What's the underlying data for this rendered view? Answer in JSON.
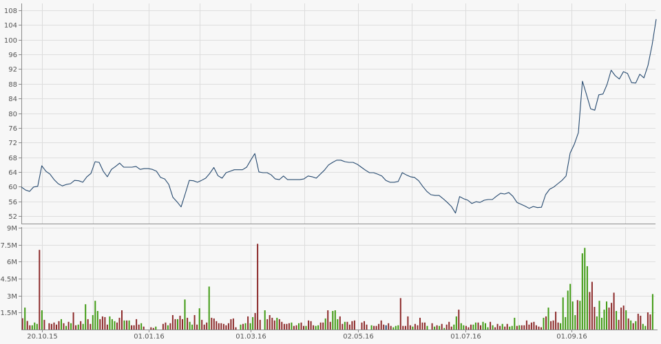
{
  "chart_data": [
    {
      "type": "line",
      "panel": "price",
      "ylim": [
        50,
        109
      ],
      "yticks": [
        52,
        56,
        60,
        64,
        68,
        72,
        76,
        80,
        84,
        88,
        92,
        96,
        100,
        104,
        108
      ],
      "grid": true,
      "color": "#24486e",
      "values": [
        59.9,
        59.1,
        58.7,
        59.9,
        60.1,
        65.7,
        64.2,
        63.4,
        61.9,
        60.8,
        60.2,
        60.6,
        60.8,
        61.7,
        61.6,
        61.2,
        62.7,
        63.6,
        66.8,
        66.6,
        64.2,
        62.7,
        64.7,
        65.5,
        66.4,
        65.3,
        65.3,
        65.3,
        65.5,
        64.7,
        64.9,
        64.9,
        64.7,
        64.2,
        62.5,
        62.1,
        60.6,
        57.1,
        55.9,
        54.5,
        58.0,
        61.7,
        61.6,
        61.2,
        61.7,
        62.3,
        63.6,
        65.2,
        63.0,
        62.3,
        63.8,
        64.2,
        64.6,
        64.6,
        64.6,
        65.3,
        67.2,
        69.0,
        64.0,
        63.8,
        63.8,
        63.2,
        62.1,
        61.9,
        62.9,
        61.9,
        61.9,
        61.9,
        61.9,
        62.1,
        62.9,
        62.7,
        62.3,
        63.4,
        64.5,
        65.9,
        66.6,
        67.2,
        67.2,
        66.8,
        66.6,
        66.6,
        66.1,
        65.3,
        64.5,
        63.8,
        63.8,
        63.4,
        62.9,
        61.7,
        61.2,
        61.2,
        61.4,
        63.8,
        63.2,
        62.7,
        62.5,
        61.6,
        60.1,
        58.7,
        57.8,
        57.6,
        57.6,
        56.7,
        55.7,
        54.6,
        52.8,
        57.3,
        56.7,
        56.3,
        55.4,
        55.9,
        55.7,
        56.3,
        56.5,
        56.5,
        57.4,
        58.2,
        58.0,
        58.4,
        57.4,
        55.7,
        55.2,
        54.7,
        54.1,
        54.6,
        54.3,
        54.4,
        57.8,
        59.3,
        59.9,
        60.8,
        61.7,
        62.9,
        69.2,
        71.5,
        74.7,
        88.7,
        85.0,
        81.2,
        80.8,
        85.0,
        85.2,
        87.8,
        91.7,
        90.2,
        89.3,
        91.3,
        90.8,
        88.3,
        88.2,
        90.6,
        89.6,
        93.0,
        98.6,
        105.6
      ]
    },
    {
      "type": "bar",
      "panel": "volume",
      "ylim": [
        0,
        9000000
      ],
      "yticks": [
        {
          "value": 1500000,
          "label": "1.5M"
        },
        {
          "value": 3000000,
          "label": "3M"
        },
        {
          "value": 4500000,
          "label": "4.5M"
        },
        {
          "value": 6000000,
          "label": "6M"
        },
        {
          "value": 7500000,
          "label": "7.5M"
        },
        {
          "value": 9000000,
          "label": "9M"
        }
      ],
      "grid": true,
      "colors": {
        "u": "#3f9a12",
        "d": "#8c2a2a",
        "n": "#24486e"
      },
      "values_millions": [
        1.0,
        1.94,
        0.76,
        0.38,
        0.38,
        0.62,
        0.5,
        7.04,
        1.7,
        0.86,
        null,
        0.56,
        0.5,
        0.62,
        0.44,
        0.74,
        0.92,
        0.56,
        0.32,
        0.68,
        0.56,
        1.52,
        0.38,
        0.44,
        0.74,
        0.5,
        2.24,
        0.92,
        0.5,
        1.28,
        2.54,
        1.64,
        0.92,
        1.16,
        1.1,
        0.44,
        1.16,
        0.92,
        0.74,
        0.62,
        1.04,
        1.7,
        0.8,
        0.8,
        0.8,
        0.38,
        0.38,
        0.92,
        0.44,
        0.56,
        0.26,
        null,
        null,
        0.2,
        0.14,
        0.26,
        null,
        null,
        0.5,
        0.62,
        0.38,
        0.56,
        1.28,
        0.92,
        0.92,
        1.22,
        0.92,
        2.66,
        1.04,
        0.68,
        0.44,
        1.28,
        0.44,
        1.88,
        0.86,
        0.44,
        0.62,
        3.8,
        1.04,
        0.98,
        0.74,
        0.56,
        0.56,
        0.5,
        0.38,
        0.56,
        0.92,
        0.98,
        0.2,
        null,
        0.44,
        0.5,
        0.56,
        1.16,
        0.56,
        1.1,
        1.46,
        7.58,
        0.86,
        null,
        1.7,
        0.92,
        1.28,
        1.04,
        0.8,
        1.04,
        0.92,
        0.68,
        0.5,
        0.5,
        0.56,
        0.62,
        0.32,
        0.38,
        0.56,
        0.62,
        0.32,
        0.32,
        0.8,
        0.74,
        0.38,
        0.32,
        0.38,
        0.62,
        0.62,
        0.98,
        1.7,
        0.68,
        1.64,
        1.7,
        0.92,
        1.16,
        0.5,
        0.68,
        0.68,
        0.44,
        0.74,
        0.8,
        null,
        null,
        0.62,
        0.74,
        0.44,
        null,
        0.38,
        0.32,
        0.32,
        0.5,
        0.8,
        0.44,
        0.38,
        0.56,
        0.32,
        0.2,
        0.32,
        0.38,
        2.78,
        0.32,
        0.32,
        1.16,
        0.38,
        0.26,
        0.5,
        0.38,
        1.04,
        0.62,
        0.62,
        0.32,
        null,
        0.56,
        0.26,
        0.38,
        0.32,
        0.5,
        0.14,
        0.44,
        0.68,
        0.26,
        0.44,
        1.16,
        1.76,
        0.56,
        0.38,
        0.32,
        0.2,
        0.44,
        0.44,
        0.62,
        0.62,
        0.38,
        0.68,
        0.56,
        0.2,
        0.68,
        0.38,
        0.2,
        0.5,
        0.32,
        0.5,
        0.26,
        0.5,
        0.26,
        0.32,
        1.04,
        0.32,
        0.38,
        0.38,
        0.38,
        0.8,
        0.44,
        0.62,
        0.68,
        0.38,
        0.26,
        0.2,
        1.04,
        1.16,
        1.94,
        0.74,
        0.8,
        1.58,
        0.62,
        0.56,
        2.84,
        1.1,
        3.44,
        4.04,
        2.48,
        1.28,
        2.6,
        2.54,
        6.74,
        7.22,
        5.6,
        3.32,
        4.22,
        2.0,
        1.16,
        2.54,
        1.04,
        1.76,
        2.48,
        1.94,
        2.36,
        3.26,
        1.64,
        0.86,
        1.94,
        2.12,
        1.7,
        0.98,
        0.8,
        0.56,
        0.74,
        1.4,
        1.22,
        0.5,
        0.32,
        1.52,
        1.34,
        3.14
      ],
      "direction": "dudduuudud-dddddudududduduudduuudddduuudddudud ddudd--dud--dudddudduduuddudddudddddddddd-uududuudd-uudddduddddduddudduddduuddudduuuddudd--ddd-duudddddndduuudddddudddddu-dudududdduuduuddduudduuududddudduuududddddddddududddduuuuuuuduuuuddduuuuudddudddudududduudduuudddduddudu"
    }
  ],
  "xaxis": {
    "labels": [
      {
        "label": "20.10.15",
        "slot": 8
      },
      {
        "label": "01.01.16",
        "slot": 52.1
      },
      {
        "label": "01.03.16",
        "slot": 94.1
      },
      {
        "label": "02.05.16",
        "slot": 138.4
      },
      {
        "label": "01.07.16",
        "slot": 182.7
      },
      {
        "label": "01.09.16",
        "slot": 226.5
      }
    ],
    "minor_gridlines_slots": [
      29.1,
      73.1,
      116.3,
      160.6,
      204.3,
      248.6
    ]
  }
}
